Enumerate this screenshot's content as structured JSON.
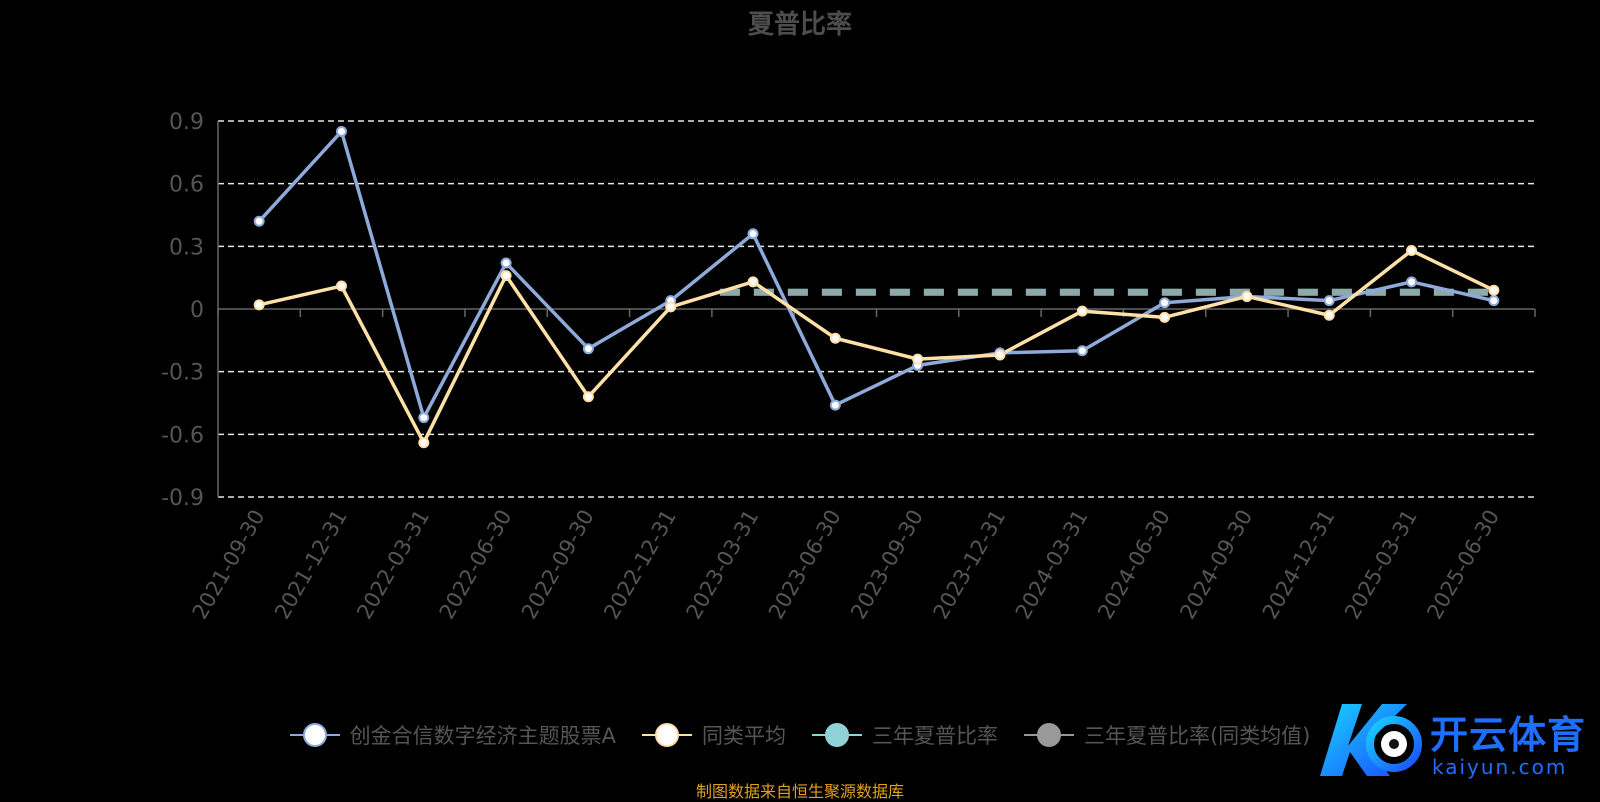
{
  "chart_data": {
    "type": "line",
    "title": "夏普比率",
    "categories": [
      "2021-09-30",
      "2021-12-31",
      "2022-03-31",
      "2022-06-30",
      "2022-09-30",
      "2022-12-31",
      "2023-03-31",
      "2023-06-30",
      "2023-09-30",
      "2023-12-31",
      "2024-03-31",
      "2024-06-30",
      "2024-09-30",
      "2024-12-31",
      "2025-03-31",
      "2025-06-30"
    ],
    "ylim": [
      -0.9,
      0.9
    ],
    "yticks": [
      "0.9",
      "0.6",
      "0.3",
      "0",
      "-0.3",
      "-0.6",
      "-0.9"
    ],
    "grid": true,
    "legend_position": "bottom",
    "series": [
      {
        "name": "创金合信数字经济主题股票A",
        "color": "#8eaadb",
        "values": [
          0.42,
          0.85,
          -0.52,
          0.22,
          -0.19,
          0.04,
          0.36,
          -0.46,
          -0.27,
          -0.21,
          -0.2,
          0.03,
          0.06,
          0.04,
          0.13,
          0.04
        ]
      },
      {
        "name": "同类平均",
        "color": "#ffe0a6",
        "values": [
          0.02,
          0.11,
          -0.64,
          0.16,
          -0.42,
          0.01,
          0.13,
          -0.14,
          -0.24,
          -0.22,
          -0.01,
          -0.04,
          0.06,
          -0.03,
          0.28,
          0.09
        ]
      },
      {
        "name": "三年夏普比率",
        "color": "#8fd3d6",
        "values": [
          null,
          null,
          null,
          null,
          null,
          null,
          0.08,
          0.08,
          0.08,
          0.08,
          0.08,
          0.08,
          0.08,
          0.08,
          0.08,
          0.08
        ]
      },
      {
        "name": "三年夏普比率(同类均值)",
        "color": "#999999",
        "values": [
          null,
          null,
          null,
          null,
          null,
          null,
          0.08,
          0.08,
          0.08,
          0.08,
          0.08,
          0.08,
          0.08,
          0.08,
          0.08,
          0.08
        ]
      }
    ],
    "source": "制图数据来自恒生聚源数据库"
  },
  "watermark": {
    "brand": "开云体育",
    "domain": "kaiyun.com"
  }
}
